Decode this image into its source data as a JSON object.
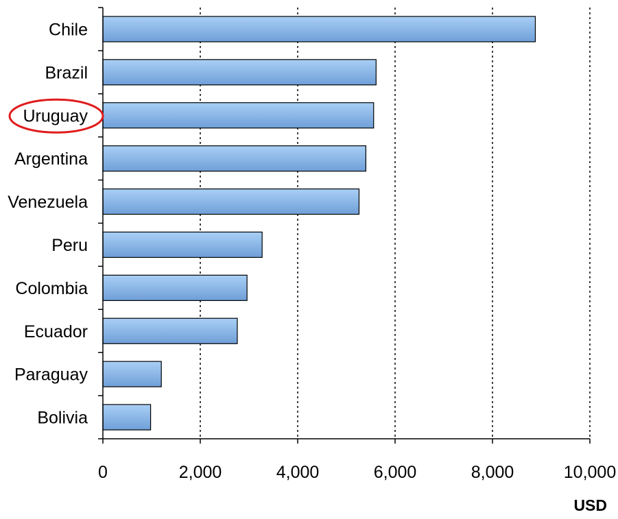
{
  "chart_data": {
    "type": "bar",
    "orientation": "horizontal",
    "categories": [
      "Chile",
      "Brazil",
      "Uruguay",
      "Argentina",
      "Venezuela",
      "Peru",
      "Colombia",
      "Ecuador",
      "Paraguay",
      "Bolivia"
    ],
    "values": [
      8880,
      5610,
      5560,
      5400,
      5260,
      3270,
      2960,
      2760,
      1200,
      980
    ],
    "xlabel": "USD",
    "xlim": [
      0,
      10000
    ],
    "xticks": [
      0,
      2000,
      4000,
      6000,
      8000,
      10000
    ],
    "xtick_labels": [
      "0",
      "2,000",
      "4,000",
      "6,000",
      "8,000",
      "10,000"
    ],
    "grid": "vertical dashed",
    "highlighted_category": "Uruguay",
    "colors": {
      "bar_top": "#a9cff5",
      "bar_bottom": "#6f9fd8",
      "bar_border": "#000000",
      "highlight_ring": "#e01b1b",
      "grid": "#000000"
    }
  }
}
